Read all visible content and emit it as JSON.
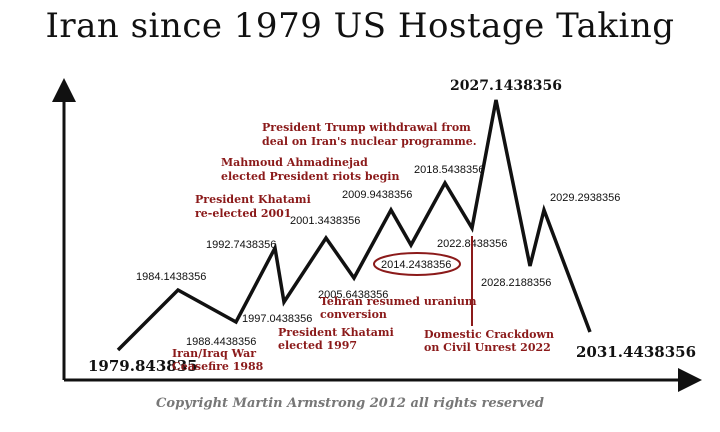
{
  "title": "Iran since 1979 US Hostage Taking",
  "copyright": "Copyright Martin Armstrong 2012 all rights reserved",
  "colors": {
    "line": "#111111",
    "annotation": "#8b1a1a",
    "circle": "#8b1a1a"
  },
  "chart_data": {
    "type": "line",
    "title": "Iran since 1979 US Hostage Taking",
    "xlabel": "",
    "ylabel": "",
    "grid": false,
    "points": [
      {
        "x": "1979.843835",
        "kind": "low"
      },
      {
        "x": "1984.1438356",
        "kind": "high"
      },
      {
        "x": "1988.4438356",
        "kind": "low"
      },
      {
        "x": "1992.7438356",
        "kind": "high"
      },
      {
        "x": "1997.0438356",
        "kind": "low"
      },
      {
        "x": "2001.3438356",
        "kind": "high"
      },
      {
        "x": "2005.6438356",
        "kind": "low"
      },
      {
        "x": "2009.9438356",
        "kind": "high"
      },
      {
        "x": "2014.2438356",
        "kind": "low"
      },
      {
        "x": "2018.5438356",
        "kind": "high"
      },
      {
        "x": "2022.8438356",
        "kind": "low"
      },
      {
        "x": "2027.1438356",
        "kind": "high"
      },
      {
        "x": "2028.2188356",
        "kind": "low"
      },
      {
        "x": "2029.2938356",
        "kind": "high"
      },
      {
        "x": "2031.4438356",
        "kind": "low"
      }
    ],
    "circled_point": "2014.2438356",
    "annotations": [
      {
        "id": "iran-iraq",
        "lines": [
          "Iran/Iraq War",
          "Ceasefire 1988"
        ]
      },
      {
        "id": "khatami-1997",
        "lines": [
          "President Khatami",
          "elected 1997"
        ]
      },
      {
        "id": "khatami-2001",
        "lines": [
          "President Khatami",
          "re-elected 2001"
        ]
      },
      {
        "id": "ahmadinejad",
        "lines": [
          "Mahmoud Ahmadinejad",
          "elected President riots begin"
        ]
      },
      {
        "id": "uranium",
        "lines": [
          "Tehran resumed uranium",
          "conversion"
        ]
      },
      {
        "id": "trump",
        "lines": [
          "President Trump withdrawal from",
          "deal on Iran's nuclear programme."
        ]
      },
      {
        "id": "crackdown",
        "lines": [
          "Domestic Crackdown",
          "on Civil Unrest 2022"
        ]
      }
    ]
  }
}
